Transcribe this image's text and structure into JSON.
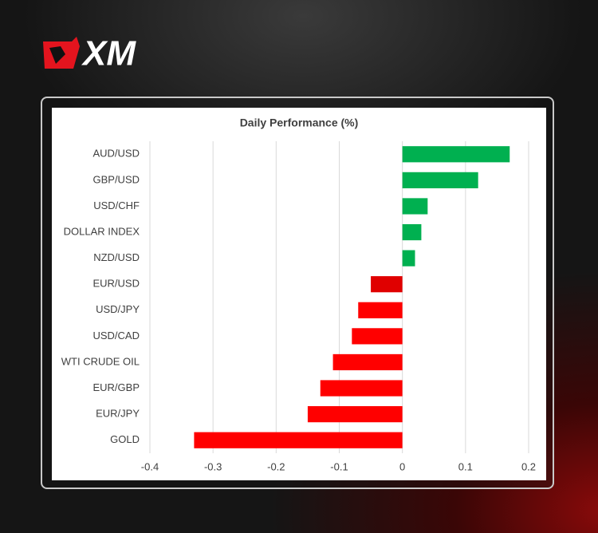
{
  "logo": "XM",
  "chart_data": {
    "type": "hbar",
    "title": "Daily Performance (%)",
    "categories": [
      "AUD/USD",
      "GBP/USD",
      "USD/CHF",
      "DOLLAR INDEX",
      "NZD/USD",
      "EUR/USD",
      "USD/JPY",
      "USD/CAD",
      "WTI CRUDE OIL",
      "EUR/GBP",
      "EUR/JPY",
      "GOLD"
    ],
    "values": [
      0.17,
      0.12,
      0.04,
      0.03,
      0.02,
      -0.05,
      -0.07,
      -0.08,
      -0.11,
      -0.13,
      -0.15,
      -0.33
    ],
    "colors": [
      "#00b050",
      "#00b050",
      "#00b050",
      "#00b050",
      "#00b050",
      "#e00000",
      "#ff0000",
      "#ff0000",
      "#ff0000",
      "#ff0000",
      "#ff0000",
      "#ff0000"
    ],
    "xlim": [
      -0.4,
      0.2
    ],
    "xticks": [
      -0.4,
      -0.3,
      -0.2,
      -0.1,
      0,
      0.1,
      0.2
    ],
    "grid": true
  }
}
